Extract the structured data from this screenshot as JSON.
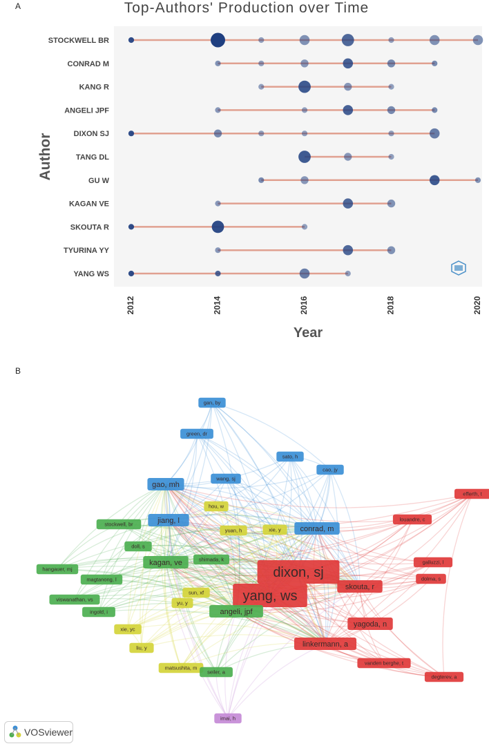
{
  "panel_a_letter": "A",
  "panel_b_letter": "B",
  "chart_data": [
    {
      "type": "scatter",
      "title": "Top-Authors' Production over Time",
      "xlabel": "Year",
      "ylabel": "Author",
      "xlim": [
        2012,
        2020
      ],
      "xticks": [
        2012,
        2014,
        2016,
        2018,
        2020
      ],
      "authors": [
        "STOCKWELL BR",
        "CONRAD M",
        "KANG R",
        "ANGELI JPF",
        "DIXON SJ",
        "TANG DL",
        "GU W",
        "KAGAN VE",
        "SKOUTA R",
        "TYURINA YY",
        "YANG WS"
      ],
      "lines": [
        {
          "author": "STOCKWELL BR",
          "start": 2012,
          "end": 2020
        },
        {
          "author": "CONRAD M",
          "start": 2014,
          "end": 2019
        },
        {
          "author": "KANG R",
          "start": 2015,
          "end": 2018
        },
        {
          "author": "ANGELI JPF",
          "start": 2014,
          "end": 2019
        },
        {
          "author": "DIXON SJ",
          "start": 2012,
          "end": 2019
        },
        {
          "author": "TANG DL",
          "start": 2016,
          "end": 2018
        },
        {
          "author": "GU W",
          "start": 2015,
          "end": 2020
        },
        {
          "author": "KAGAN VE",
          "start": 2014,
          "end": 2018
        },
        {
          "author": "SKOUTA R",
          "start": 2012,
          "end": 2016
        },
        {
          "author": "TYURINA YY",
          "start": 2014,
          "end": 2018
        },
        {
          "author": "YANG WS",
          "start": 2012,
          "end": 2017
        }
      ],
      "points": [
        {
          "author": "STOCKWELL BR",
          "year": 2012,
          "size": 1,
          "intensity": 0.9
        },
        {
          "author": "STOCKWELL BR",
          "year": 2014,
          "size": 5,
          "intensity": 1.0
        },
        {
          "author": "STOCKWELL BR",
          "year": 2015,
          "size": 1,
          "intensity": 0.3
        },
        {
          "author": "STOCKWELL BR",
          "year": 2016,
          "size": 3,
          "intensity": 0.4
        },
        {
          "author": "STOCKWELL BR",
          "year": 2017,
          "size": 4,
          "intensity": 0.7
        },
        {
          "author": "STOCKWELL BR",
          "year": 2018,
          "size": 1,
          "intensity": 0.3
        },
        {
          "author": "STOCKWELL BR",
          "year": 2019,
          "size": 3,
          "intensity": 0.4
        },
        {
          "author": "STOCKWELL BR",
          "year": 2020,
          "size": 3,
          "intensity": 0.4
        },
        {
          "author": "CONRAD M",
          "year": 2014,
          "size": 1,
          "intensity": 0.4
        },
        {
          "author": "CONRAD M",
          "year": 2015,
          "size": 1,
          "intensity": 0.3
        },
        {
          "author": "CONRAD M",
          "year": 2016,
          "size": 2,
          "intensity": 0.35
        },
        {
          "author": "CONRAD M",
          "year": 2017,
          "size": 3,
          "intensity": 0.75
        },
        {
          "author": "CONRAD M",
          "year": 2018,
          "size": 2,
          "intensity": 0.45
        },
        {
          "author": "CONRAD M",
          "year": 2019,
          "size": 1,
          "intensity": 0.45
        },
        {
          "author": "KANG R",
          "year": 2015,
          "size": 1,
          "intensity": 0.3
        },
        {
          "author": "KANG R",
          "year": 2016,
          "size": 4,
          "intensity": 0.8
        },
        {
          "author": "KANG R",
          "year": 2017,
          "size": 2,
          "intensity": 0.35
        },
        {
          "author": "KANG R",
          "year": 2018,
          "size": 1,
          "intensity": 0.3
        },
        {
          "author": "ANGELI JPF",
          "year": 2014,
          "size": 1,
          "intensity": 0.35
        },
        {
          "author": "ANGELI JPF",
          "year": 2016,
          "size": 1,
          "intensity": 0.3
        },
        {
          "author": "ANGELI JPF",
          "year": 2017,
          "size": 3,
          "intensity": 0.75
        },
        {
          "author": "ANGELI JPF",
          "year": 2018,
          "size": 2,
          "intensity": 0.45
        },
        {
          "author": "ANGELI JPF",
          "year": 2019,
          "size": 1,
          "intensity": 0.45
        },
        {
          "author": "DIXON SJ",
          "year": 2012,
          "size": 1,
          "intensity": 0.9
        },
        {
          "author": "DIXON SJ",
          "year": 2014,
          "size": 2,
          "intensity": 0.45
        },
        {
          "author": "DIXON SJ",
          "year": 2015,
          "size": 1,
          "intensity": 0.3
        },
        {
          "author": "DIXON SJ",
          "year": 2016,
          "size": 1,
          "intensity": 0.3
        },
        {
          "author": "DIXON SJ",
          "year": 2018,
          "size": 1,
          "intensity": 0.3
        },
        {
          "author": "DIXON SJ",
          "year": 2019,
          "size": 3,
          "intensity": 0.55
        },
        {
          "author": "TANG DL",
          "year": 2016,
          "size": 4,
          "intensity": 0.8
        },
        {
          "author": "TANG DL",
          "year": 2017,
          "size": 2,
          "intensity": 0.35
        },
        {
          "author": "TANG DL",
          "year": 2018,
          "size": 1,
          "intensity": 0.3
        },
        {
          "author": "GU W",
          "year": 2015,
          "size": 1,
          "intensity": 0.45
        },
        {
          "author": "GU W",
          "year": 2016,
          "size": 2,
          "intensity": 0.35
        },
        {
          "author": "GU W",
          "year": 2019,
          "size": 3,
          "intensity": 0.8
        },
        {
          "author": "GU W",
          "year": 2020,
          "size": 1,
          "intensity": 0.4
        },
        {
          "author": "KAGAN VE",
          "year": 2014,
          "size": 1,
          "intensity": 0.35
        },
        {
          "author": "KAGAN VE",
          "year": 2017,
          "size": 3,
          "intensity": 0.7
        },
        {
          "author": "KAGAN VE",
          "year": 2018,
          "size": 2,
          "intensity": 0.4
        },
        {
          "author": "SKOUTA R",
          "year": 2012,
          "size": 1,
          "intensity": 0.9
        },
        {
          "author": "SKOUTA R",
          "year": 2014,
          "size": 4,
          "intensity": 0.9
        },
        {
          "author": "SKOUTA R",
          "year": 2016,
          "size": 1,
          "intensity": 0.3
        },
        {
          "author": "TYURINA YY",
          "year": 2014,
          "size": 1,
          "intensity": 0.35
        },
        {
          "author": "TYURINA YY",
          "year": 2017,
          "size": 3,
          "intensity": 0.7
        },
        {
          "author": "TYURINA YY",
          "year": 2018,
          "size": 2,
          "intensity": 0.4
        },
        {
          "author": "YANG WS",
          "year": 2012,
          "size": 1,
          "intensity": 0.9
        },
        {
          "author": "YANG WS",
          "year": 2014,
          "size": 1,
          "intensity": 0.7
        },
        {
          "author": "YANG WS",
          "year": 2016,
          "size": 3,
          "intensity": 0.55
        },
        {
          "author": "YANG WS",
          "year": 2017,
          "size": 1,
          "intensity": 0.3
        }
      ],
      "colors": {
        "point": "#1f3f80",
        "line": "#e0a090",
        "panel_bg": "#f5f5f5"
      }
    }
  ],
  "network": {
    "clusters": {
      "red": "#e03a3a",
      "green": "#4caf50",
      "blue": "#3b8fd6",
      "yellow": "#d4d43a",
      "purple": "#c48ad6"
    },
    "nodes": [
      {
        "label": "gan, by",
        "cluster": "blue",
        "weight": 1
      },
      {
        "label": "green, dr",
        "cluster": "blue",
        "weight": 1
      },
      {
        "label": "sato, h",
        "cluster": "blue",
        "weight": 1
      },
      {
        "label": "cao, jy",
        "cluster": "blue",
        "weight": 1
      },
      {
        "label": "gao, mh",
        "cluster": "blue",
        "weight": 2
      },
      {
        "label": "wang, sj",
        "cluster": "blue",
        "weight": 1
      },
      {
        "label": "jiang, l",
        "cluster": "blue",
        "weight": 2
      },
      {
        "label": "conrad, m",
        "cluster": "blue",
        "weight": 2
      },
      {
        "label": "efferth, t",
        "cluster": "red",
        "weight": 1
      },
      {
        "label": "louandre, c",
        "cluster": "red",
        "weight": 1
      },
      {
        "label": "galluzzi, l",
        "cluster": "red",
        "weight": 1
      },
      {
        "label": "dolma, s",
        "cluster": "red",
        "weight": 1
      },
      {
        "label": "dixon, sj",
        "cluster": "red",
        "weight": 5
      },
      {
        "label": "yang, ws",
        "cluster": "red",
        "weight": 5
      },
      {
        "label": "skouta, r",
        "cluster": "red",
        "weight": 2
      },
      {
        "label": "yagoda, n",
        "cluster": "red",
        "weight": 2
      },
      {
        "label": "linkermann, a",
        "cluster": "red",
        "weight": 2
      },
      {
        "label": "vanden berghe, t",
        "cluster": "red",
        "weight": 1
      },
      {
        "label": "degterev, a",
        "cluster": "red",
        "weight": 1
      },
      {
        "label": "hou, w",
        "cluster": "yellow",
        "weight": 1
      },
      {
        "label": "yuan, h",
        "cluster": "yellow",
        "weight": 1
      },
      {
        "label": "xie, y",
        "cluster": "yellow",
        "weight": 1
      },
      {
        "label": "sun, xf",
        "cluster": "yellow",
        "weight": 1
      },
      {
        "label": "yu, y",
        "cluster": "yellow",
        "weight": 1
      },
      {
        "label": "xie, yc",
        "cluster": "yellow",
        "weight": 1
      },
      {
        "label": "liu, y",
        "cluster": "yellow",
        "weight": 1
      },
      {
        "label": "matsushita, m",
        "cluster": "yellow",
        "weight": 1
      },
      {
        "label": "stockwell, br",
        "cluster": "green",
        "weight": 1
      },
      {
        "label": "doll, s",
        "cluster": "green",
        "weight": 1
      },
      {
        "label": "kagan, ve",
        "cluster": "green",
        "weight": 2
      },
      {
        "label": "shimada, k",
        "cluster": "green",
        "weight": 1
      },
      {
        "label": "hangauer, mj",
        "cluster": "green",
        "weight": 1
      },
      {
        "label": "magtanong, l",
        "cluster": "green",
        "weight": 1
      },
      {
        "label": "viswanathan, vs",
        "cluster": "green",
        "weight": 1
      },
      {
        "label": "ingold, i",
        "cluster": "green",
        "weight": 1
      },
      {
        "label": "angeli, jpf",
        "cluster": "green",
        "weight": 2
      },
      {
        "label": "seiler, a",
        "cluster": "green",
        "weight": 1
      },
      {
        "label": "imai, h",
        "cluster": "purple",
        "weight": 1
      }
    ],
    "logo_text": "VOSviewer"
  }
}
